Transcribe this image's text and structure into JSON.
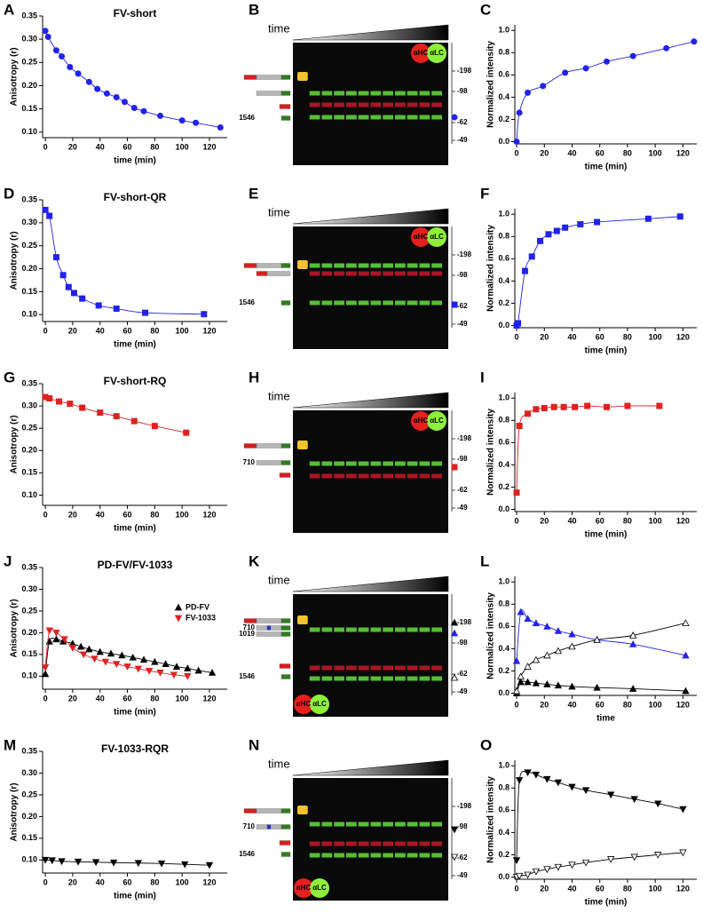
{
  "chart_data": [
    {
      "label": "A",
      "type": "line",
      "title": "FV-short",
      "x_label": "time (min)",
      "y_label": "Anisotropy (r)",
      "xlim": [
        -2,
        133
      ],
      "ylim": [
        0.088,
        0.35
      ],
      "xticks": [
        0,
        20,
        40,
        60,
        80,
        100,
        120
      ],
      "yticks": [
        {
          "value": 0.1,
          "label": "0.10"
        },
        0.15,
        {
          "value": 0.2,
          "label": "0.20"
        },
        0.25,
        {
          "value": 0.3,
          "label": "0.30"
        },
        0.35
      ],
      "series": [
        {
          "color": "#2222ee",
          "marker": "circle",
          "filled": true,
          "x": [
            0,
            2,
            8,
            12,
            18,
            24,
            32,
            38,
            45,
            52,
            58,
            65,
            72,
            84,
            100,
            110,
            128
          ],
          "values": [
            0.318,
            0.305,
            0.276,
            0.263,
            0.24,
            0.226,
            0.208,
            0.193,
            0.183,
            0.175,
            0.165,
            0.152,
            0.145,
            0.135,
            0.125,
            0.12,
            0.11
          ]
        }
      ]
    },
    {
      "label": "C",
      "type": "line",
      "x_label": "time (min)",
      "y_label": "Normalized intensity",
      "xlim": [
        -1.3,
        130
      ],
      "ylim": [
        -0.02,
        1.05
      ],
      "xticks": [
        0,
        20,
        40,
        60,
        80,
        100,
        120
      ],
      "yticks": [
        {
          "value": 0,
          "label": "0.0"
        },
        0.2,
        0.4,
        0.6,
        0.8,
        {
          "value": 1,
          "label": "1.0"
        }
      ],
      "series": [
        {
          "color": "#2222ee",
          "marker": "circle",
          "filled": true,
          "x": [
            0,
            2,
            8,
            19,
            35,
            50,
            65,
            84,
            108,
            128
          ],
          "values": [
            0,
            0.26,
            0.44,
            0.5,
            0.62,
            0.66,
            0.72,
            0.77,
            0.84,
            0.9
          ]
        }
      ]
    },
    {
      "label": "D",
      "type": "line",
      "title": "FV-short-QR",
      "x_label": "time (min)",
      "y_label": "Anisotropy (r)",
      "xlim": [
        -2,
        133
      ],
      "ylim": [
        0.085,
        0.35
      ],
      "xticks": [
        0,
        20,
        40,
        60,
        80,
        100,
        120
      ],
      "yticks": [
        {
          "value": 0.1,
          "label": "0.10"
        },
        0.15,
        {
          "value": 0.2,
          "label": "0.20"
        },
        0.25,
        {
          "value": 0.3,
          "label": "0.30"
        },
        0.35
      ],
      "series": [
        {
          "color": "#2222ee",
          "marker": "square",
          "filled": true,
          "x": [
            0,
            3,
            8,
            13,
            17,
            21,
            27,
            39,
            52,
            73,
            116
          ],
          "values": [
            0.328,
            0.315,
            0.225,
            0.186,
            0.16,
            0.147,
            0.135,
            0.12,
            0.113,
            0.104,
            0.101
          ]
        }
      ]
    },
    {
      "label": "F",
      "type": "line",
      "x_label": "time (min)",
      "y_label": "Normalized intensity",
      "xlim": [
        -1.3,
        130
      ],
      "ylim": [
        -0.02,
        1.05
      ],
      "xticks": [
        0,
        20,
        40,
        60,
        80,
        100,
        120
      ],
      "yticks": [
        {
          "value": 0,
          "label": "0.0"
        },
        0.2,
        0.4,
        0.6,
        0.8,
        {
          "value": 1,
          "label": "1.0"
        }
      ],
      "series": [
        {
          "color": "#2222ee",
          "marker": "square",
          "filled": true,
          "x": [
            0,
            1,
            6,
            11,
            17,
            23,
            29,
            35,
            46,
            58,
            95,
            118
          ],
          "values": [
            0,
            0.02,
            0.49,
            0.62,
            0.76,
            0.82,
            0.85,
            0.88,
            0.91,
            0.93,
            0.96,
            0.98
          ]
        }
      ]
    },
    {
      "label": "G",
      "type": "line",
      "title": "FV-short-RQ",
      "x_label": "time (min)",
      "y_label": "Anisotropy (r)",
      "xlim": [
        -2,
        133
      ],
      "ylim": [
        0.077,
        0.35
      ],
      "xticks": [
        0,
        20,
        40,
        60,
        80,
        100,
        120
      ],
      "yticks": [
        {
          "value": 0.1,
          "label": "0.10"
        },
        0.15,
        {
          "value": 0.2,
          "label": "0.20"
        },
        0.25,
        {
          "value": 0.3,
          "label": "0.30"
        },
        0.35
      ],
      "series": [
        {
          "color": "#dd2222",
          "marker": "square",
          "filled": true,
          "x": [
            0,
            3,
            10,
            18,
            27,
            40,
            52,
            65,
            80,
            103
          ],
          "values": [
            0.32,
            0.317,
            0.31,
            0.305,
            0.296,
            0.285,
            0.277,
            0.266,
            0.255,
            0.24
          ]
        }
      ]
    },
    {
      "label": "I",
      "type": "line",
      "x_label": "time (min)",
      "y_label": "Normalized intensity",
      "xlim": [
        -1.3,
        130
      ],
      "ylim": [
        -0.02,
        1.05
      ],
      "xticks": [
        0,
        20,
        40,
        60,
        80,
        100,
        120
      ],
      "yticks": [
        {
          "value": 0,
          "label": "0.0"
        },
        0.2,
        0.4,
        0.6,
        0.8,
        {
          "value": 1,
          "label": "1.0"
        }
      ],
      "series": [
        {
          "color": "#dd2222",
          "marker": "square",
          "filled": true,
          "x": [
            0,
            2,
            8,
            14,
            20,
            27,
            34,
            42,
            51,
            65,
            80,
            103
          ],
          "values": [
            0.15,
            0.75,
            0.86,
            0.9,
            0.91,
            0.92,
            0.92,
            0.92,
            0.93,
            0.92,
            0.93,
            0.93
          ]
        }
      ]
    },
    {
      "label": "J",
      "type": "line",
      "title": "PD-FV/FV-1033",
      "x_label": "time (min)",
      "y_label": "Anisotropy (r)",
      "xlim": [
        -2,
        133
      ],
      "ylim": [
        0.07,
        0.35
      ],
      "xticks": [
        0,
        20,
        40,
        60,
        80,
        100,
        120
      ],
      "yticks": [
        {
          "value": 0.1,
          "label": "0.10"
        },
        0.15,
        {
          "value": 0.2,
          "label": "0.20"
        },
        0.25,
        {
          "value": 0.3,
          "label": "0.30"
        },
        0.35
      ],
      "legend": "right",
      "series": [
        {
          "name": "PD-FV",
          "color": "#000000",
          "marker": "triangle-up",
          "filled": true,
          "x": [
            0,
            3,
            8,
            13,
            20,
            26,
            32,
            40,
            48,
            56,
            64,
            72,
            80,
            88,
            96,
            104,
            112,
            122
          ],
          "values": [
            0.105,
            0.18,
            0.185,
            0.18,
            0.175,
            0.168,
            0.162,
            0.156,
            0.152,
            0.148,
            0.143,
            0.138,
            0.133,
            0.128,
            0.122,
            0.118,
            0.113,
            0.108
          ]
        },
        {
          "name": "FV-1033",
          "color": "#dd2222",
          "marker": "triangle-down",
          "filled": true,
          "x": [
            0,
            3,
            8,
            14,
            20,
            28,
            36,
            44,
            52,
            60,
            68,
            76,
            84,
            94,
            104
          ],
          "values": [
            0.12,
            0.205,
            0.2,
            0.185,
            0.165,
            0.15,
            0.14,
            0.133,
            0.128,
            0.122,
            0.117,
            0.112,
            0.108,
            0.103,
            0.1
          ]
        }
      ]
    },
    {
      "label": "L",
      "type": "line",
      "x_label": "time",
      "y_label": "Normalized intensity",
      "xlim": [
        -1.3,
        130
      ],
      "ylim": [
        -0.02,
        1.05
      ],
      "xticks": [
        0,
        20,
        40,
        60,
        80,
        100,
        120
      ],
      "yticks": [
        {
          "value": 0,
          "label": "0.0"
        },
        0.2,
        0.4,
        0.6,
        0.8,
        {
          "value": 1,
          "label": "1.0"
        }
      ],
      "series": [
        {
          "color": "#000000",
          "marker": "triangle-up",
          "filled": true,
          "x": [
            0,
            3,
            8,
            14,
            22,
            30,
            40,
            58,
            84,
            122
          ],
          "values": [
            0,
            0.1,
            0.1,
            0.09,
            0.08,
            0.07,
            0.06,
            0.05,
            0.04,
            0.02
          ]
        },
        {
          "color": "#2222ee",
          "marker": "triangle-up",
          "filled": true,
          "x": [
            0,
            3,
            8,
            14,
            22,
            30,
            40,
            58,
            84,
            122
          ],
          "values": [
            0.29,
            0.73,
            0.67,
            0.63,
            0.6,
            0.56,
            0.53,
            0.48,
            0.44,
            0.34
          ]
        },
        {
          "color": "#000000",
          "marker": "triangle-up",
          "filled": false,
          "x": [
            0,
            3,
            8,
            14,
            22,
            30,
            40,
            58,
            84,
            122
          ],
          "values": [
            0.02,
            0.15,
            0.24,
            0.3,
            0.34,
            0.38,
            0.42,
            0.48,
            0.52,
            0.63
          ]
        }
      ]
    },
    {
      "label": "M",
      "type": "line",
      "title": "FV-1033-RQR",
      "x_label": "time (min)",
      "y_label": "Anisotropy (r)",
      "xlim": [
        -2,
        133
      ],
      "ylim": [
        0.07,
        0.35
      ],
      "xticks": [
        0,
        20,
        40,
        60,
        80,
        100,
        120
      ],
      "yticks": [
        {
          "value": 0.1,
          "label": "0.10"
        },
        0.15,
        {
          "value": 0.2,
          "label": "0.20"
        },
        0.25,
        {
          "value": 0.3,
          "label": "0.30"
        },
        0.35
      ],
      "series": [
        {
          "color": "#000000",
          "marker": "triangle-down",
          "filled": true,
          "x": [
            0,
            5,
            12,
            24,
            37,
            50,
            68,
            85,
            102,
            120
          ],
          "values": [
            0.1,
            0.099,
            0.097,
            0.096,
            0.095,
            0.094,
            0.093,
            0.092,
            0.09,
            0.088
          ]
        }
      ]
    },
    {
      "label": "O",
      "type": "line",
      "x_label": "time (min)",
      "y_label": "Normalized intensity",
      "xlim": [
        -1.3,
        130
      ],
      "ylim": [
        -0.02,
        1.05
      ],
      "xticks": [
        0,
        20,
        40,
        60,
        80,
        100,
        120
      ],
      "yticks": [
        {
          "value": 0,
          "label": "0.0"
        },
        0.2,
        0.4,
        0.6,
        0.8,
        {
          "value": 1,
          "label": "1.0"
        }
      ],
      "series": [
        {
          "color": "#000000",
          "marker": "triangle-down",
          "filled": true,
          "x": [
            0,
            2,
            8,
            14,
            22,
            30,
            40,
            50,
            68,
            85,
            102,
            120
          ],
          "values": [
            0.15,
            0.87,
            0.94,
            0.92,
            0.88,
            0.85,
            0.81,
            0.78,
            0.74,
            0.7,
            0.66,
            0.61
          ]
        },
        {
          "color": "#000000",
          "marker": "triangle-down",
          "filled": false,
          "x": [
            0,
            2,
            8,
            14,
            22,
            30,
            40,
            50,
            68,
            85,
            102,
            120
          ],
          "values": [
            0,
            0.01,
            0.02,
            0.05,
            0.07,
            0.09,
            0.11,
            0.13,
            0.16,
            0.18,
            0.2,
            0.22
          ]
        }
      ]
    }
  ],
  "gels": [
    {
      "label": "B",
      "time": "time",
      "antibodies": [
        "αHC",
        "αLC"
      ],
      "markers": [
        "-198",
        "-98",
        "-62",
        "-49"
      ],
      "constructs": [
        "1546"
      ]
    },
    {
      "label": "E",
      "time": "time",
      "antibodies": [
        "αHC",
        "αLC"
      ],
      "markers": [
        "-198",
        "-98",
        "-62",
        "-49"
      ],
      "constructs": [
        "1546"
      ]
    },
    {
      "label": "H",
      "time": "time",
      "antibodies": [
        "αHC",
        "αLC"
      ],
      "markers": [
        "-198",
        "-98",
        "-62",
        "-49"
      ],
      "constructs": [
        "710"
      ]
    },
    {
      "label": "K",
      "time": "time",
      "antibodies": [
        "αHC",
        "αLC"
      ],
      "markers": [
        "-198",
        "-98",
        "-62",
        "-49"
      ],
      "constructs": [
        "710",
        "1019",
        "1546"
      ]
    },
    {
      "label": "N",
      "time": "time",
      "antibodies": [
        "αHC",
        "αLC"
      ],
      "markers": [
        "-198",
        "-98",
        "-62",
        "-49"
      ],
      "constructs": [
        "710",
        "1546"
      ]
    }
  ]
}
